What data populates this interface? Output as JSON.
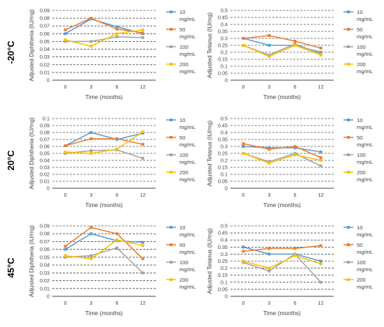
{
  "rows": [
    {
      "label": "-20°C"
    },
    {
      "label": "20°C"
    },
    {
      "label": "45°C"
    }
  ],
  "colors": {
    "10 mg/mL": "#5B9BD5",
    "50 mg/mL": "#ED7D31",
    "100 mg/mL": "#A5A5A5",
    "200 mg/mL": "#FFC000"
  },
  "legend": {
    "entries": [
      {
        "line1": "10",
        "line2": "mg/mL"
      },
      {
        "line1": "50",
        "line2": "mg/mL"
      },
      {
        "line1": "100",
        "line2": "mg/mL"
      },
      {
        "line1": "200",
        "line2": "mg/mL"
      }
    ],
    "placement": "right"
  },
  "chart_data": [
    {
      "type": "line",
      "row": "-20°C",
      "categories": [
        "0",
        "3",
        "6",
        "12"
      ],
      "xlabel": "Time (months)",
      "ylabel": "Adjusted Diphtheria (IU/mg)",
      "ylim": [
        0,
        0.09
      ],
      "yticks": [
        "0",
        "0.01",
        "0.02",
        "0.03",
        "0.04",
        "0.05",
        "0.06",
        "0.07",
        "0.08",
        "0.09"
      ],
      "grid": true,
      "series": [
        {
          "name": "10 mg/mL",
          "values": [
            0.06,
            0.079,
            0.069,
            0.06
          ]
        },
        {
          "name": "50 mg/mL",
          "values": [
            0.065,
            0.08,
            0.066,
            0.061
          ]
        },
        {
          "name": "100 mg/mL",
          "values": [
            0.05,
            0.05,
            0.056,
            0.055
          ]
        },
        {
          "name": "200 mg/mL",
          "values": [
            0.052,
            0.044,
            0.06,
            0.065
          ]
        }
      ]
    },
    {
      "type": "line",
      "row": "-20°C",
      "categories": [
        "0",
        "3",
        "6",
        "12"
      ],
      "xlabel": "Time (months)",
      "ylabel": "Adjusted Tetanus (IU/mg)",
      "ylim": [
        0,
        0.5
      ],
      "yticks": [
        "0",
        "0.05",
        "0.1",
        "0.15",
        "0.2",
        "0.25",
        "0.3",
        "0.35",
        "0.4",
        "0.45",
        "0.5"
      ],
      "grid": true,
      "series": [
        {
          "name": "10 mg/mL",
          "values": [
            0.3,
            0.25,
            0.25,
            0.2
          ]
        },
        {
          "name": "50 mg/mL",
          "values": [
            0.3,
            0.32,
            0.28,
            0.23
          ]
        },
        {
          "name": "100 mg/mL",
          "values": [
            0.25,
            0.18,
            0.26,
            0.19
          ]
        },
        {
          "name": "200 mg/mL",
          "values": [
            0.25,
            0.17,
            0.25,
            0.18
          ]
        }
      ]
    },
    {
      "type": "line",
      "row": "20°C",
      "categories": [
        "0",
        "3",
        "6",
        "12"
      ],
      "xlabel": "Time (months)",
      "ylabel": "Adjusted Diphtheria (IU/mg)",
      "ylim": [
        0,
        0.1
      ],
      "yticks": [
        "0",
        "0.01",
        "0.02",
        "0.03",
        "0.04",
        "0.05",
        "0.06",
        "0.07",
        "0.08",
        "0.09",
        "0.1"
      ],
      "grid": true,
      "series": [
        {
          "name": "10 mg/mL",
          "values": [
            0.061,
            0.08,
            0.07,
            0.079
          ]
        },
        {
          "name": "50 mg/mL",
          "values": [
            0.061,
            0.071,
            0.071,
            0.063
          ]
        },
        {
          "name": "100 mg/mL",
          "values": [
            0.05,
            0.054,
            0.055,
            0.043
          ]
        },
        {
          "name": "200 mg/mL",
          "values": [
            0.052,
            0.05,
            0.056,
            0.081
          ]
        }
      ]
    },
    {
      "type": "line",
      "row": "20°C",
      "categories": [
        "0",
        "3",
        "6",
        "12"
      ],
      "xlabel": "Time (months)",
      "ylabel": "Adjusted Tetanus (IU/mg)",
      "ylim": [
        0,
        0.5
      ],
      "yticks": [
        "0",
        "0.05",
        "0.1",
        "0.15",
        "0.2",
        "0.25",
        "0.3",
        "0.35",
        "0.4",
        "0.45",
        "0.5"
      ],
      "grid": true,
      "series": [
        {
          "name": "10 mg/mL",
          "values": [
            0.3,
            0.29,
            0.29,
            0.26
          ]
        },
        {
          "name": "50 mg/mL",
          "values": [
            0.32,
            0.28,
            0.3,
            0.22
          ]
        },
        {
          "name": "100 mg/mL",
          "values": [
            0.25,
            0.19,
            0.25,
            0.16
          ]
        },
        {
          "name": "200 mg/mL",
          "values": [
            0.25,
            0.18,
            0.24,
            0.2
          ]
        }
      ]
    },
    {
      "type": "line",
      "row": "45°C",
      "categories": [
        "0",
        "3",
        "6",
        "12"
      ],
      "xlabel": "Time (months)",
      "ylabel": "Adjusted Diphtheria (IU/mg)",
      "ylim": [
        0,
        0.09
      ],
      "yticks": [
        "0",
        "0.01",
        "0.02",
        "0.03",
        "0.04",
        "0.05",
        "0.06",
        "0.07",
        "0.08",
        "0.09"
      ],
      "grid": true,
      "series": [
        {
          "name": "10 mg/mL",
          "values": [
            0.06,
            0.08,
            0.071,
            0.069
          ]
        },
        {
          "name": "50 mg/mL",
          "values": [
            0.064,
            0.088,
            0.08,
            0.048
          ]
        },
        {
          "name": "100 mg/mL",
          "values": [
            0.05,
            0.052,
            0.062,
            0.03
          ]
        },
        {
          "name": "200 mg/mL",
          "values": [
            0.052,
            0.048,
            0.072,
            0.065
          ]
        }
      ]
    },
    {
      "type": "line",
      "row": "45°C",
      "categories": [
        "0",
        "3",
        "6",
        "12"
      ],
      "xlabel": "Time (months)",
      "ylabel": "Adjusted Tetanus (IU/mg)",
      "ylim": [
        0,
        0.5
      ],
      "yticks": [
        "0",
        "0.05",
        "0.1",
        "0.15",
        "0.2",
        "0.25",
        "0.3",
        "0.35",
        "0.4",
        "0.45",
        "0.5"
      ],
      "grid": true,
      "series": [
        {
          "name": "10 mg/mL",
          "values": [
            0.35,
            0.3,
            0.3,
            0.25
          ]
        },
        {
          "name": "50 mg/mL",
          "values": [
            0.32,
            0.34,
            0.34,
            0.36
          ]
        },
        {
          "name": "100 mg/mL",
          "values": [
            0.24,
            0.18,
            0.3,
            0.1
          ]
        },
        {
          "name": "200 mg/mL",
          "values": [
            0.25,
            0.2,
            0.29,
            0.23
          ]
        }
      ]
    }
  ]
}
